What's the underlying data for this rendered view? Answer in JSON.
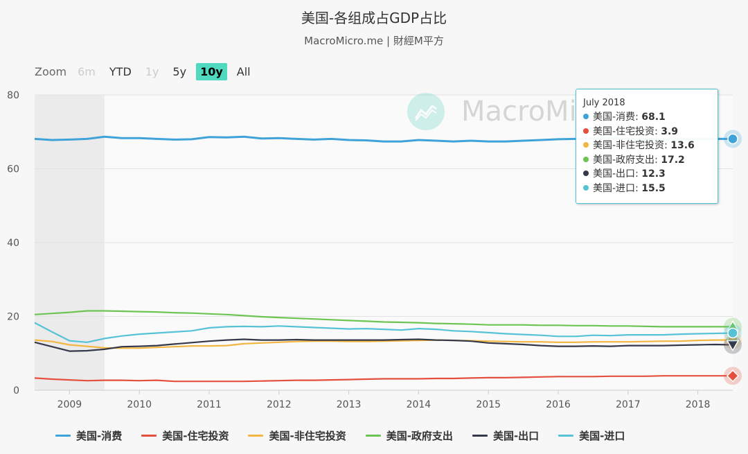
{
  "title": "美国-各组成占GDP占比",
  "subtitle": "MacroMicro.me | 財經M平方",
  "watermark": "MacroMicro",
  "zoom": {
    "label": "Zoom",
    "buttons": [
      {
        "label": "6m",
        "state": "disabled"
      },
      {
        "label": "YTD",
        "state": "normal"
      },
      {
        "label": "1y",
        "state": "disabled"
      },
      {
        "label": "5y",
        "state": "normal"
      },
      {
        "label": "10y",
        "state": "active"
      },
      {
        "label": "All",
        "state": "normal"
      }
    ]
  },
  "tooltip": {
    "title": "July 2018",
    "rows": [
      {
        "name": "美国-消费",
        "value": "68.1",
        "color": "#3fa2d9"
      },
      {
        "name": "美国-住宅投资",
        "value": "3.9",
        "color": "#e4503d"
      },
      {
        "name": "美国-非住宅投资",
        "value": "13.6",
        "color": "#f2b642"
      },
      {
        "name": "美国-政府支出",
        "value": "17.2",
        "color": "#6cc552"
      },
      {
        "name": "美国-出口",
        "value": "12.3",
        "color": "#343848"
      },
      {
        "name": "美国-进口",
        "value": "15.5",
        "color": "#55c2d6"
      }
    ]
  },
  "chart_data": {
    "type": "line",
    "title": "美国-各组成占GDP占比",
    "xlabel": "",
    "ylabel": "",
    "ylim": [
      0,
      80
    ],
    "yticks": [
      0,
      20,
      40,
      60,
      80
    ],
    "xlim": [
      2008.5,
      2018.5
    ],
    "xticks": [
      2009,
      2010,
      2011,
      2012,
      2013,
      2014,
      2015,
      2016,
      2017,
      2018
    ],
    "grid": true,
    "legend_position": "bottom",
    "x": [
      2008.5,
      2008.75,
      2009.0,
      2009.25,
      2009.5,
      2009.75,
      2010.0,
      2010.25,
      2010.5,
      2010.75,
      2011.0,
      2011.25,
      2011.5,
      2011.75,
      2012.0,
      2012.25,
      2012.5,
      2012.75,
      2013.0,
      2013.25,
      2013.5,
      2013.75,
      2014.0,
      2014.25,
      2014.5,
      2014.75,
      2015.0,
      2015.25,
      2015.5,
      2015.75,
      2016.0,
      2016.25,
      2016.5,
      2016.75,
      2017.0,
      2017.25,
      2017.5,
      2017.75,
      2018.0,
      2018.25,
      2018.5
    ],
    "series": [
      {
        "name": "美国-消费",
        "color": "#3fa2d9",
        "values": [
          68.1,
          67.8,
          67.9,
          68.1,
          68.7,
          68.3,
          68.3,
          68.1,
          67.9,
          68.0,
          68.6,
          68.5,
          68.7,
          68.2,
          68.3,
          68.1,
          67.9,
          68.1,
          67.8,
          67.7,
          67.4,
          67.4,
          67.8,
          67.6,
          67.4,
          67.6,
          67.4,
          67.4,
          67.6,
          67.8,
          68.0,
          68.1,
          68.2,
          68.3,
          68.1,
          68.1,
          68.0,
          68.1,
          68.1,
          68.1,
          68.1
        ]
      },
      {
        "name": "美国-住宅投资",
        "color": "#e4503d",
        "values": [
          3.3,
          3.0,
          2.8,
          2.6,
          2.7,
          2.7,
          2.6,
          2.7,
          2.4,
          2.4,
          2.4,
          2.4,
          2.4,
          2.5,
          2.6,
          2.7,
          2.7,
          2.8,
          2.9,
          3.0,
          3.1,
          3.1,
          3.1,
          3.2,
          3.2,
          3.3,
          3.4,
          3.4,
          3.5,
          3.6,
          3.7,
          3.7,
          3.7,
          3.8,
          3.8,
          3.8,
          3.9,
          3.9,
          3.9,
          3.9,
          3.9
        ]
      },
      {
        "name": "美国-非住宅投资",
        "color": "#f2b642",
        "values": [
          13.6,
          13.2,
          12.3,
          11.9,
          11.5,
          11.4,
          11.4,
          11.6,
          11.8,
          12.0,
          12.0,
          12.1,
          12.6,
          12.8,
          13.0,
          13.2,
          13.3,
          13.3,
          13.2,
          13.2,
          13.3,
          13.4,
          13.5,
          13.6,
          13.5,
          13.4,
          13.3,
          13.2,
          13.1,
          13.1,
          13.0,
          13.0,
          13.1,
          13.1,
          13.1,
          13.2,
          13.3,
          13.3,
          13.5,
          13.6,
          13.6
        ]
      },
      {
        "name": "美国-政府支出",
        "color": "#6cc552",
        "values": [
          20.5,
          20.8,
          21.1,
          21.5,
          21.5,
          21.4,
          21.3,
          21.2,
          21.0,
          20.9,
          20.7,
          20.5,
          20.2,
          19.9,
          19.7,
          19.5,
          19.3,
          19.1,
          18.9,
          18.7,
          18.5,
          18.4,
          18.3,
          18.1,
          18.0,
          17.9,
          17.7,
          17.7,
          17.7,
          17.6,
          17.6,
          17.5,
          17.5,
          17.4,
          17.4,
          17.3,
          17.2,
          17.2,
          17.2,
          17.2,
          17.2
        ]
      },
      {
        "name": "美国-出口",
        "color": "#343848",
        "values": [
          13.0,
          11.8,
          10.6,
          10.7,
          11.1,
          11.8,
          11.9,
          12.1,
          12.5,
          12.9,
          13.3,
          13.6,
          13.8,
          13.6,
          13.6,
          13.7,
          13.6,
          13.6,
          13.6,
          13.6,
          13.6,
          13.7,
          13.8,
          13.6,
          13.5,
          13.3,
          12.8,
          12.6,
          12.4,
          12.1,
          11.9,
          11.9,
          12.0,
          11.9,
          12.1,
          12.1,
          12.1,
          12.2,
          12.3,
          12.4,
          12.3
        ]
      },
      {
        "name": "美国-进口",
        "color": "#55c2d6",
        "values": [
          18.3,
          15.8,
          13.4,
          13.0,
          14.0,
          14.7,
          15.2,
          15.5,
          15.8,
          16.1,
          16.9,
          17.2,
          17.3,
          17.2,
          17.4,
          17.2,
          17.0,
          16.8,
          16.6,
          16.7,
          16.5,
          16.3,
          16.7,
          16.5,
          16.1,
          15.9,
          15.6,
          15.3,
          15.1,
          14.9,
          14.6,
          14.6,
          14.9,
          14.8,
          15.0,
          15.0,
          15.0,
          15.2,
          15.3,
          15.4,
          15.5
        ]
      }
    ]
  }
}
